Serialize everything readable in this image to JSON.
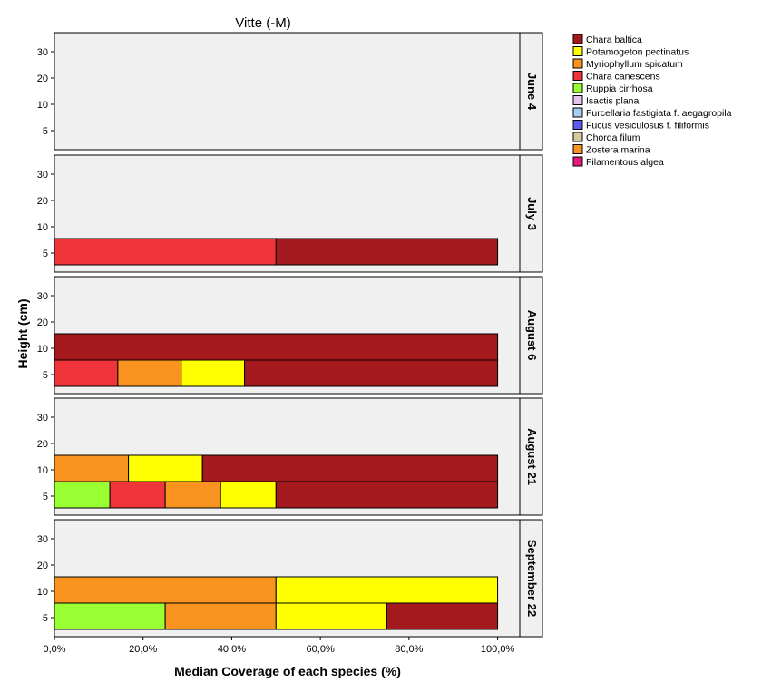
{
  "chart_data": {
    "type": "bar",
    "orientation": "horizontal",
    "stacked": true,
    "title": "Vitte (-M)",
    "xlabel": "Median Coverage of each species (%)",
    "ylabel": "Height (cm)",
    "xlim": [
      0,
      105
    ],
    "xticks": [
      "0,0%",
      "20,0%",
      "40,0%",
      "60,0%",
      "80,0%",
      "100,0%"
    ],
    "yticks": [
      "5",
      "10",
      "20",
      "30"
    ],
    "legend_position": "top-right",
    "species": [
      {
        "name": "Chara baltica",
        "color": "#a3191d"
      },
      {
        "name": "Potamogeton pectinatus",
        "color": "#ffff00"
      },
      {
        "name": "Myriophyllum spicatum",
        "color": "#f7931e"
      },
      {
        "name": "Chara canescens",
        "color": "#f0353a"
      },
      {
        "name": "Ruppia cirrhosa",
        "color": "#99ff33"
      },
      {
        "name": "Isactis plana",
        "color": "#e3c4ec"
      },
      {
        "name": "Furcellaria fastigiata f. aegagropila",
        "color": "#a8cdf0"
      },
      {
        "name": "Fucus vesiculosus f. filiformis",
        "color": "#5b5bf2"
      },
      {
        "name": "Chorda filum",
        "color": "#d8c8a0"
      },
      {
        "name": "Zostera marina",
        "color": "#f7931e"
      },
      {
        "name": "Filamentous algea",
        "color": "#e6197f"
      }
    ],
    "panels": [
      {
        "label": "June 4",
        "rows": []
      },
      {
        "label": "July 3",
        "rows": [
          {
            "height": "5",
            "segments": [
              {
                "species": "Chara canescens",
                "value": 50
              },
              {
                "species": "Chara baltica",
                "value": 50
              }
            ]
          }
        ]
      },
      {
        "label": "August 6",
        "rows": [
          {
            "height": "5",
            "segments": [
              {
                "species": "Chara canescens",
                "value": 14.3
              },
              {
                "species": "Myriophyllum spicatum",
                "value": 14.3
              },
              {
                "species": "Potamogeton pectinatus",
                "value": 14.3
              },
              {
                "species": "Chara baltica",
                "value": 57.1
              }
            ]
          },
          {
            "height": "10",
            "segments": [
              {
                "species": "Chara baltica",
                "value": 100
              }
            ]
          }
        ]
      },
      {
        "label": "August 21",
        "rows": [
          {
            "height": "5",
            "segments": [
              {
                "species": "Ruppia cirrhosa",
                "value": 12.5
              },
              {
                "species": "Chara canescens",
                "value": 12.5
              },
              {
                "species": "Myriophyllum spicatum",
                "value": 12.5
              },
              {
                "species": "Potamogeton pectinatus",
                "value": 12.5
              },
              {
                "species": "Chara baltica",
                "value": 50
              }
            ]
          },
          {
            "height": "10",
            "segments": [
              {
                "species": "Myriophyllum spicatum",
                "value": 16.7
              },
              {
                "species": "Potamogeton pectinatus",
                "value": 16.7
              },
              {
                "species": "Chara baltica",
                "value": 66.6
              }
            ]
          }
        ]
      },
      {
        "label": "September 22",
        "rows": [
          {
            "height": "5",
            "segments": [
              {
                "species": "Ruppia cirrhosa",
                "value": 25
              },
              {
                "species": "Zostera marina",
                "value": 25
              },
              {
                "species": "Potamogeton pectinatus",
                "value": 25
              },
              {
                "species": "Chara baltica",
                "value": 25
              }
            ]
          },
          {
            "height": "10",
            "segments": [
              {
                "species": "Zostera marina",
                "value": 50
              },
              {
                "species": "Potamogeton pectinatus",
                "value": 50
              }
            ]
          }
        ]
      }
    ]
  }
}
